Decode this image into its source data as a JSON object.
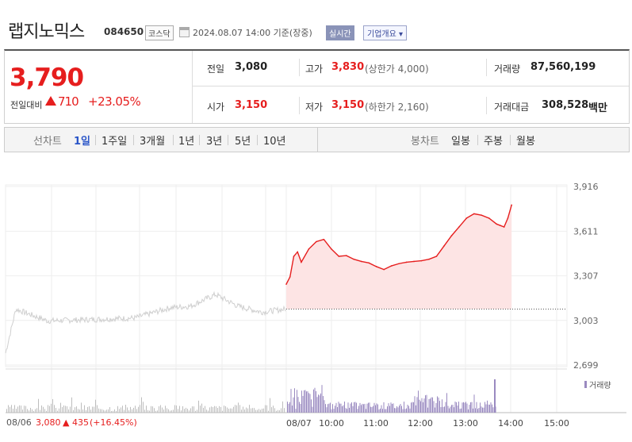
{
  "header": {
    "name": "랩지노믹스",
    "code": "084650",
    "market": "코스닥",
    "as_of": "2024.08.07 14:00  기준(장중)",
    "realtime": "실시간",
    "company_button": "기업개요 ▾"
  },
  "quote": {
    "price": "3,790",
    "change_label": "전일대비",
    "change": "710",
    "change_pct": "+23.05%",
    "prev_close_label": "전일",
    "prev_close": "3,080",
    "high_label": "고가",
    "high": "3,830",
    "upper_limit": "(상한가 4,000)",
    "volume_label": "거래량",
    "volume": "87,560,199",
    "open_label": "시가",
    "open": "3,150",
    "low_label": "저가",
    "low": "3,150",
    "lower_limit": "(하한가 2,160)",
    "value_label": "거래대금",
    "value": "308,528",
    "value_unit": "백만"
  },
  "tabs": {
    "line_label": "선차트",
    "line": [
      "1일",
      "1주일",
      "3개월",
      "1년",
      "3년",
      "5년",
      "10년"
    ],
    "candle_label": "봉차트",
    "candle": [
      "일봉",
      "주봉",
      "월봉"
    ]
  },
  "colors": {
    "up": "#e61e1e",
    "area": "#fde4e4",
    "prev_line": "#cfcfcf",
    "volume": "#9a8ac0",
    "prev_volume": "#bdbdbd"
  },
  "chart_data": {
    "type": "line",
    "y_ticks": [
      "3,916",
      "3,611",
      "3,307",
      "3,003",
      "2,699"
    ],
    "ylim": [
      2699,
      3916
    ],
    "x_ticks": [
      "08/07",
      "10:00",
      "11:00",
      "12:00",
      "13:00",
      "14:00",
      "15:00"
    ],
    "prev_close": 3080,
    "series": [
      {
        "x": [
          "09:00",
          "09:05",
          "09:10",
          "09:15",
          "09:20",
          "09:30",
          "09:40",
          "09:50",
          "10:00",
          "10:10",
          "10:20",
          "10:30",
          "10:40",
          "10:50",
          "11:00",
          "11:10",
          "11:20",
          "11:30",
          "11:40",
          "11:50",
          "12:00",
          "12:10",
          "12:20",
          "12:30",
          "12:40",
          "12:50",
          "13:00",
          "13:10",
          "13:20",
          "13:30",
          "13:40",
          "13:45",
          "13:50",
          "13:55",
          "14:00"
        ],
        "values": [
          3250,
          3300,
          3440,
          3470,
          3400,
          3490,
          3540,
          3555,
          3490,
          3440,
          3445,
          3420,
          3405,
          3395,
          3370,
          3350,
          3375,
          3390,
          3400,
          3405,
          3410,
          3420,
          3440,
          3510,
          3580,
          3640,
          3700,
          3730,
          3720,
          3700,
          3660,
          3650,
          3640,
          3700,
          3790
        ]
      }
    ],
    "volume_label": "거래량",
    "prev_day": {
      "date": "08/06",
      "close": "3,080",
      "change": "▲ 435",
      "change_pct": "(+16.45%)"
    }
  }
}
